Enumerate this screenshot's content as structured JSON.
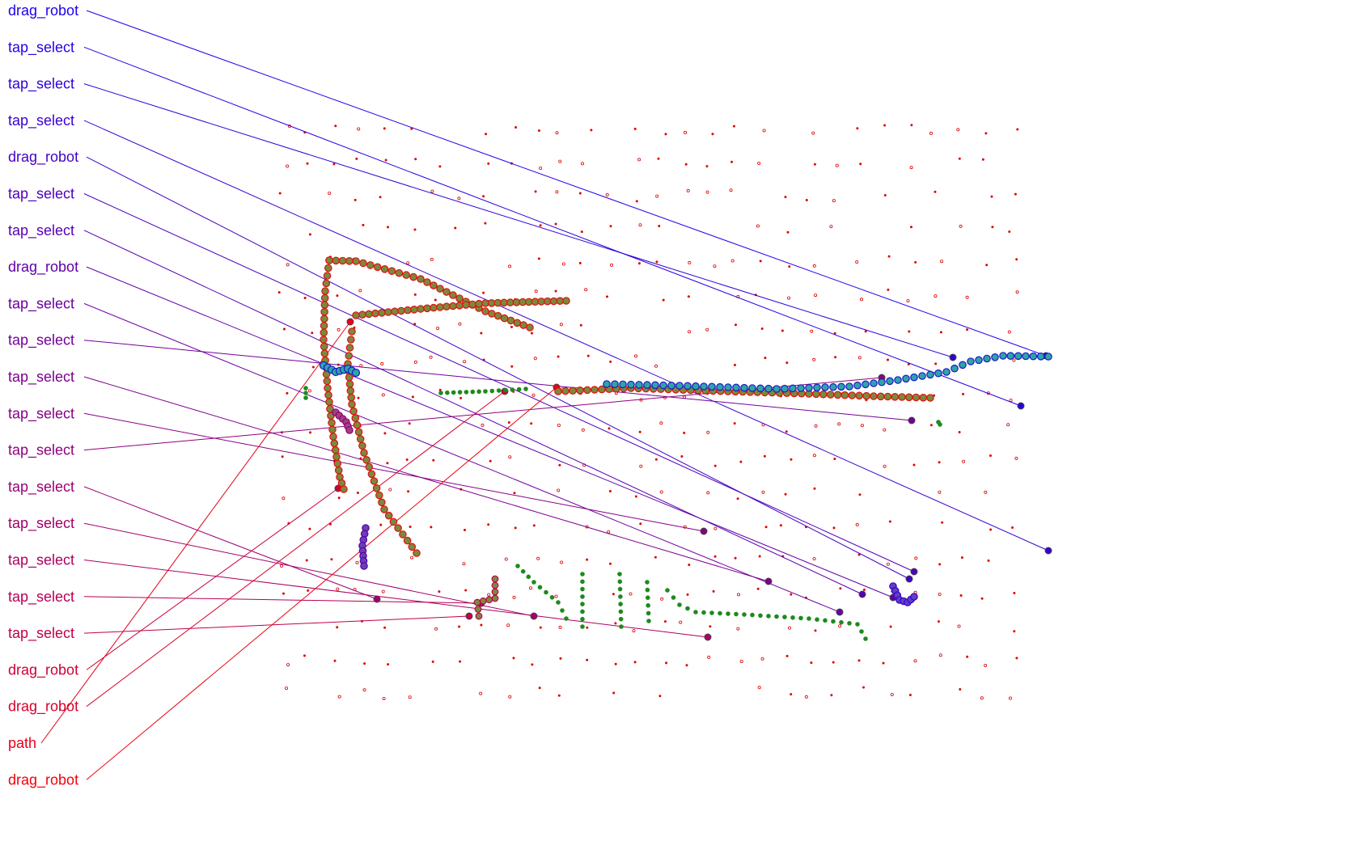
{
  "labels": [
    {
      "text": "drag_robot",
      "color": "#1f00ee"
    },
    {
      "text": "tap_select",
      "color": "#2900e2"
    },
    {
      "text": "tap_select",
      "color": "#3000d8"
    },
    {
      "text": "tap_select",
      "color": "#3a00cf"
    },
    {
      "text": "drag_robot",
      "color": "#4300c6"
    },
    {
      "text": "tap_select",
      "color": "#4d00bd"
    },
    {
      "text": "tap_select",
      "color": "#5600b3"
    },
    {
      "text": "drag_robot",
      "color": "#6000aa"
    },
    {
      "text": "tap_select",
      "color": "#6a00a1"
    },
    {
      "text": "tap_select",
      "color": "#730098"
    },
    {
      "text": "tap_select",
      "color": "#7d008e"
    },
    {
      "text": "tap_select",
      "color": "#860085"
    },
    {
      "text": "tap_select",
      "color": "#90007c"
    },
    {
      "text": "tap_select",
      "color": "#9a0072"
    },
    {
      "text": "tap_select",
      "color": "#a30069"
    },
    {
      "text": "tap_select",
      "color": "#ad0060"
    },
    {
      "text": "tap_select",
      "color": "#b60056"
    },
    {
      "text": "tap_select",
      "color": "#c0004d"
    },
    {
      "text": "drag_robot",
      "color": "#cc0038"
    },
    {
      "text": "drag_robot",
      "color": "#d9002a"
    },
    {
      "text": "path",
      "color": "#e6001a"
    },
    {
      "text": "drag_robot",
      "color": "#f0000c"
    }
  ]
}
